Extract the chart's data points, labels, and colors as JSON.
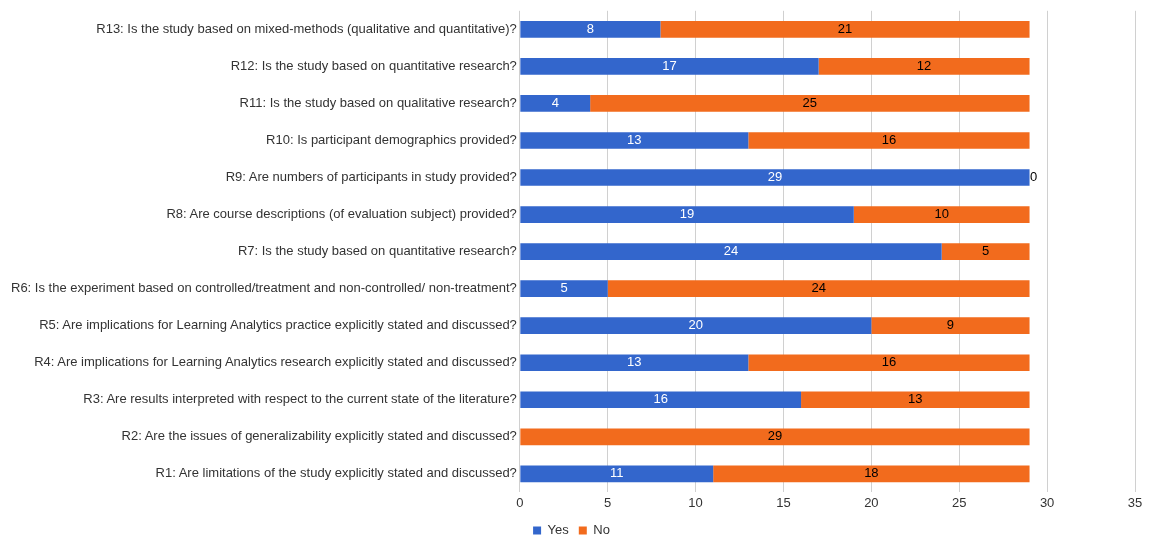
{
  "chart_data": {
    "type": "bar",
    "orientation": "horizontal",
    "stacked": true,
    "categories": [
      "R13: Is the study based on mixed-methods (qualitative and quantitative)?",
      "R12: Is the study based on quantitative research?",
      "R11: Is the study based on qualitative research?",
      "R10: Is participant demographics provided?",
      "R9: Are numbers of participants in study provided?",
      "R8: Are course descriptions (of evaluation subject) provided?",
      "R7: Is the study based on quantitative research?",
      "R6: Is the experiment based on controlled/treatment and non-controlled/ non-treatment?",
      "R5: Are implications for Learning Analytics practice explicitly stated and discussed?",
      "R4: Are implications for Learning Analytics research explicitly stated and discussed?",
      "R3: Are results interpreted with respect to the current state of the literature?",
      "R2: Are the issues of generalizability explicitly stated and discussed?",
      "R1: Are limitations of the study explicitly stated and discussed?"
    ],
    "series": [
      {
        "name": "Yes",
        "color": "#3366cc",
        "values": [
          8,
          17,
          4,
          13,
          29,
          19,
          24,
          5,
          20,
          13,
          16,
          0,
          11
        ],
        "value_labels": [
          "8",
          "17",
          "4",
          "13",
          "29",
          "19",
          "24",
          "5",
          "20",
          "13",
          "16",
          null,
          "11"
        ]
      },
      {
        "name": "No",
        "color": "#f26b1d",
        "values": [
          21,
          12,
          25,
          16,
          0,
          10,
          5,
          24,
          9,
          16,
          13,
          29,
          18
        ],
        "value_labels": [
          "21",
          "12",
          "25",
          "16",
          "0",
          "10",
          "5",
          "24",
          "9",
          "16",
          "13",
          "29",
          "18"
        ]
      }
    ],
    "xlim": [
      0,
      35
    ],
    "xticks": [
      0,
      5,
      10,
      15,
      20,
      25,
      30,
      35
    ],
    "grid": "x",
    "legend": "bottom"
  }
}
